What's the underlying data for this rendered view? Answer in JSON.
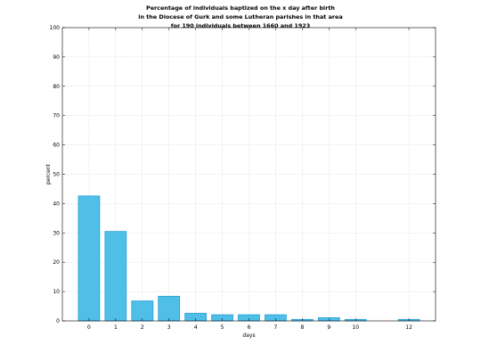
{
  "chart_data": {
    "type": "bar",
    "title_lines": [
      "Percentage of individuals baptized on the x day after birth",
      "in the Diocese of Gurk and some Lutheran parishes in that area",
      "for 190 individuals between 1660 and 1923"
    ],
    "xlabel": "days",
    "ylabel": "percent",
    "categories": [
      0,
      1,
      2,
      3,
      4,
      5,
      6,
      7,
      8,
      9,
      10,
      12
    ],
    "values": [
      42.6,
      30.5,
      6.8,
      8.4,
      2.6,
      2.1,
      2.1,
      2.1,
      0.5,
      1.1,
      0.5,
      0.5
    ],
    "xlim": [
      -1,
      13
    ],
    "ylim": [
      0,
      100
    ],
    "yticks": [
      0,
      10,
      20,
      30,
      40,
      50,
      60,
      70,
      80,
      90,
      100
    ],
    "grid": true,
    "bar_color": "#4fbfe8",
    "bar_edge_color": "#2a9fd6"
  }
}
